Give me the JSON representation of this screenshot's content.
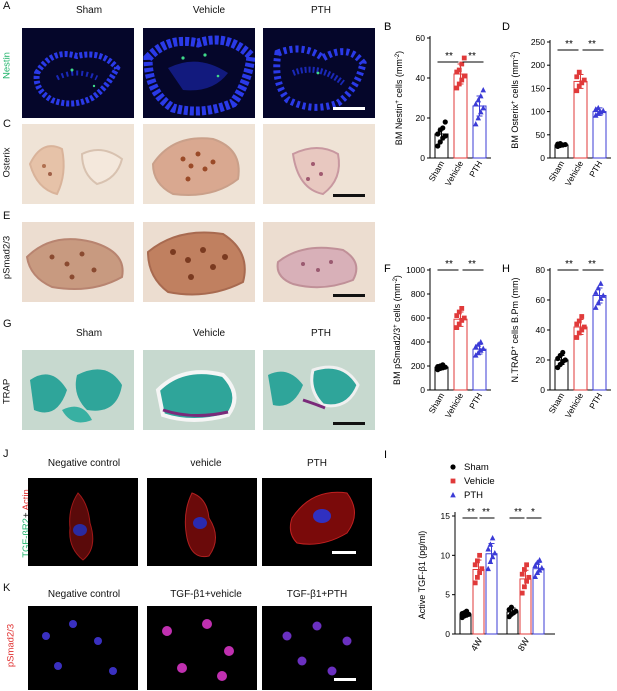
{
  "panels": {
    "A": {
      "letter": "A",
      "row_label": "Nestin",
      "cols": [
        "Sham",
        "Vehicle",
        "PTH"
      ],
      "bg": "#06062a",
      "stain": "#1d2fd6"
    },
    "C": {
      "letter": "C",
      "row_label": "Osterix",
      "bg": "#efe3d6"
    },
    "E": {
      "letter": "E",
      "row_label": "pSmad2/3",
      "bg": "#ecddd0"
    },
    "G": {
      "letter": "G",
      "row_label": "TRAP",
      "cols": [
        "Sham",
        "Vehicle",
        "PTH"
      ],
      "bg": "#c7d9cf"
    },
    "J": {
      "letter": "J",
      "row_label_green": "TGF-βR2",
      "row_label_plus": "+",
      "row_label_red": "Actin",
      "cols": [
        "Negative control",
        "vehicle",
        "PTH"
      ]
    },
    "K": {
      "letter": "K",
      "row_label": "pSmad2/3",
      "cols": [
        "Negative control",
        "TGF-β1+vehicle",
        "TGF-β1+PTH"
      ]
    }
  },
  "sig": {
    "double": "**",
    "single": "*"
  },
  "chart_data": [
    {
      "id": "B",
      "letter": "B",
      "type": "bar",
      "categories": [
        "Sham",
        "Vehicle",
        "PTH"
      ],
      "values": [
        12,
        42,
        26
      ],
      "errors": [
        3,
        5,
        5
      ],
      "ylabel_main": "BM Nestin",
      "ylabel_sup": "+",
      "ylabel_end": " cells (mm",
      "ylabel_sup2": "-2",
      "ylabel_close": ")",
      "ylim": [
        0,
        60
      ],
      "yticks": [
        "0",
        "20",
        "40",
        "60"
      ],
      "colors": [
        "#000000",
        "#e03a3a",
        "#3b3bd6"
      ],
      "points": [
        [
          6,
          8,
          10,
          11,
          12,
          14,
          15,
          18
        ],
        [
          35,
          37,
          39,
          41,
          43,
          44,
          47,
          50
        ],
        [
          17,
          20,
          23,
          25,
          27,
          29,
          31,
          34
        ]
      ],
      "sig": [
        "**",
        "**"
      ]
    },
    {
      "id": "D",
      "letter": "D",
      "type": "bar",
      "categories": [
        "Sham",
        "Vehicle",
        "PTH"
      ],
      "values": [
        28,
        165,
        100
      ],
      "errors": [
        3,
        15,
        8
      ],
      "ylabel_main": "BM Osterix",
      "ylabel_sup": "+",
      "ylabel_end": " cells (mm",
      "ylabel_sup2": "-2",
      "ylabel_close": ")",
      "ylim": [
        0,
        250
      ],
      "yticks": [
        "0",
        "50",
        "100",
        "150",
        "200",
        "250"
      ],
      "colors": [
        "#000000",
        "#e03a3a",
        "#3b3bd6"
      ],
      "points": [
        [
          25,
          27,
          28,
          29,
          30,
          31
        ],
        [
          145,
          155,
          162,
          168,
          175,
          185
        ],
        [
          92,
          96,
          99,
          102,
          105,
          108
        ]
      ],
      "sig": [
        "**",
        "**"
      ]
    },
    {
      "id": "F",
      "letter": "F",
      "type": "bar",
      "categories": [
        "Sham",
        "Vehicle",
        "PTH"
      ],
      "values": [
        190,
        590,
        340
      ],
      "errors": [
        15,
        60,
        40
      ],
      "ylabel_main": "BM pSmad2/3",
      "ylabel_sup": "+",
      "ylabel_end": " cells (mm",
      "ylabel_sup2": "-2",
      "ylabel_close": ")",
      "ylim": [
        0,
        1000
      ],
      "yticks": [
        "0",
        "200",
        "400",
        "600",
        "800",
        "1000"
      ],
      "colors": [
        "#000000",
        "#e03a3a",
        "#3b3bd6"
      ],
      "points": [
        [
          170,
          180,
          185,
          190,
          195,
          200,
          210
        ],
        [
          520,
          550,
          580,
          600,
          620,
          650,
          680
        ],
        [
          290,
          310,
          330,
          345,
          360,
          380,
          400
        ]
      ],
      "sig": [
        "**",
        "**"
      ]
    },
    {
      "id": "H",
      "letter": "H",
      "type": "bar",
      "categories": [
        "Sham",
        "Vehicle",
        "PTH"
      ],
      "values": [
        20,
        42,
        63
      ],
      "errors": [
        3,
        5,
        5
      ],
      "ylabel_main": "N.TRAP",
      "ylabel_sup": "+",
      "ylabel_end": " cells B.Pm (mm)",
      "ylabel_sup2": "",
      "ylabel_close": "",
      "ylim": [
        0,
        80
      ],
      "yticks": [
        "0",
        "20",
        "40",
        "60",
        "80"
      ],
      "colors": [
        "#000000",
        "#e03a3a",
        "#3b3bd6"
      ],
      "points": [
        [
          15,
          17,
          19,
          20,
          21,
          23,
          25
        ],
        [
          35,
          38,
          40,
          42,
          44,
          46,
          49
        ],
        [
          55,
          58,
          61,
          63,
          65,
          68,
          71
        ]
      ],
      "sig": [
        "**",
        "**"
      ]
    },
    {
      "id": "I",
      "letter": "I",
      "type": "bar",
      "categories": [
        "4W",
        "8W"
      ],
      "series": [
        {
          "name": "Sham",
          "values": [
            2.5,
            2.8
          ],
          "errors": [
            0.3,
            0.5
          ],
          "color": "#000000",
          "marker": "circle",
          "points": [
            [
              2.1,
              2.3,
              2.4,
              2.5,
              2.6,
              2.7,
              2.9
            ],
            [
              2.2,
              2.5,
              2.7,
              2.9,
              3.1,
              3.4
            ]
          ]
        },
        {
          "name": "Vehicle",
          "values": [
            8.2,
            7.0
          ],
          "errors": [
            1.2,
            1.1
          ],
          "color": "#e03a3a",
          "marker": "square",
          "points": [
            [
              6.5,
              7.2,
              7.8,
              8.3,
              8.8,
              9.3,
              10.0
            ],
            [
              5.2,
              6.0,
              6.7,
              7.2,
              7.6,
              8.2,
              8.8
            ]
          ]
        },
        {
          "name": "PTH",
          "values": [
            10.2,
            8.3
          ],
          "errors": [
            1.3,
            0.8
          ],
          "color": "#3b3bd6",
          "marker": "triangle",
          "points": [
            [
              8.3,
              9.2,
              9.8,
              10.3,
              10.8,
              11.4,
              12.2
            ],
            [
              7.3,
              7.8,
              8.1,
              8.4,
              8.7,
              9.1,
              9.4
            ]
          ]
        }
      ],
      "ylabel": "Active TGF-β1 (pg/ml)",
      "ylim": [
        0,
        15
      ],
      "yticks": [
        "0",
        "5",
        "10",
        "15"
      ],
      "sig_4w": [
        "**",
        "**"
      ],
      "sig_8w": [
        "**",
        "*"
      ]
    }
  ]
}
